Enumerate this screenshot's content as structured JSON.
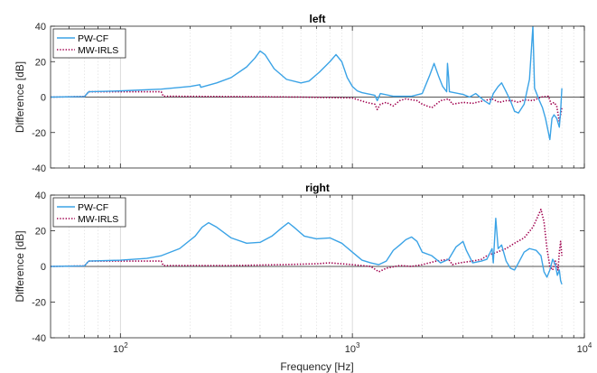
{
  "chart_data": {
    "type": "line",
    "xlabel": "Frequency [Hz]",
    "x_scale": "log",
    "xlim": [
      50,
      10000
    ],
    "x_tick_labels": [
      {
        "value": 100,
        "base": "10",
        "exp": "2"
      },
      {
        "value": 1000,
        "base": "10",
        "exp": "3"
      },
      {
        "value": 10000,
        "base": "10",
        "exp": "4"
      }
    ],
    "grid": "x-major-and-minor-dotted",
    "legend_position": "top-left",
    "panels": [
      {
        "title": "left",
        "ylabel": "Difference [dB]",
        "ylim": [
          -40,
          40
        ],
        "yticks": [
          -40,
          -20,
          0,
          20,
          40
        ],
        "series": [
          {
            "name": "PW-CF",
            "color": "#3ba3e6",
            "style": "solid",
            "points": [
              [
                50,
                0
              ],
              [
                70,
                0.3
              ],
              [
                73,
                3
              ],
              [
                100,
                3.5
              ],
              [
                150,
                4.5
              ],
              [
                200,
                6
              ],
              [
                220,
                7
              ],
              [
                222,
                5.5
              ],
              [
                260,
                8
              ],
              [
                300,
                11
              ],
              [
                350,
                17
              ],
              [
                380,
                22
              ],
              [
                400,
                26
              ],
              [
                420,
                24
              ],
              [
                460,
                16
              ],
              [
                520,
                10
              ],
              [
                600,
                8
              ],
              [
                650,
                9
              ],
              [
                720,
                14
              ],
              [
                800,
                20
              ],
              [
                850,
                24
              ],
              [
                900,
                20
              ],
              [
                950,
                11
              ],
              [
                1000,
                6
              ],
              [
                1050,
                3.5
              ],
              [
                1100,
                2.5
              ],
              [
                1200,
                1.5
              ],
              [
                1250,
                1
              ],
              [
                1280,
                -2
              ],
              [
                1320,
                2
              ],
              [
                1500,
                0.5
              ],
              [
                1800,
                0.5
              ],
              [
                2000,
                2
              ],
              [
                2150,
                12
              ],
              [
                2250,
                19
              ],
              [
                2350,
                12
              ],
              [
                2450,
                6
              ],
              [
                2550,
                3
              ],
              [
                2570,
                19
              ],
              [
                2600,
                11
              ],
              [
                2620,
                3
              ],
              [
                3000,
                1.5
              ],
              [
                3200,
                0
              ],
              [
                3400,
                2
              ],
              [
                3700,
                -2
              ],
              [
                3900,
                -4
              ],
              [
                4050,
                2
              ],
              [
                4250,
                6
              ],
              [
                4400,
                8
              ],
              [
                4600,
                3
              ],
              [
                4800,
                -2
              ],
              [
                5000,
                -8
              ],
              [
                5200,
                -9
              ],
              [
                5500,
                -4
              ],
              [
                5800,
                10
              ],
              [
                6000,
                40
              ],
              [
                6100,
                5
              ],
              [
                6400,
                -2
              ],
              [
                6600,
                -6
              ],
              [
                6800,
                -12
              ],
              [
                7000,
                -20
              ],
              [
                7100,
                -24
              ],
              [
                7250,
                -12
              ],
              [
                7400,
                -10
              ],
              [
                7600,
                -12
              ],
              [
                7800,
                -17
              ],
              [
                7900,
                -8
              ],
              [
                8000,
                5
              ]
            ]
          },
          {
            "name": "MW-IRLS",
            "color": "#a0004e",
            "style": "dotted",
            "points": [
              [
                50,
                0
              ],
              [
                70,
                0.3
              ],
              [
                73,
                3
              ],
              [
                150,
                3
              ],
              [
                153,
                0.5
              ],
              [
                300,
                0.3
              ],
              [
                600,
                0
              ],
              [
                1000,
                -0.5
              ],
              [
                1150,
                -3
              ],
              [
                1250,
                -4
              ],
              [
                1280,
                -7
              ],
              [
                1320,
                -4
              ],
              [
                1400,
                -3
              ],
              [
                1500,
                -5
              ],
              [
                1600,
                -2
              ],
              [
                1700,
                -1
              ],
              [
                1900,
                -2
              ],
              [
                2000,
                -4
              ],
              [
                2200,
                -6
              ],
              [
                2400,
                -2
              ],
              [
                2600,
                -1
              ],
              [
                2700,
                -4
              ],
              [
                3000,
                -3
              ],
              [
                3300,
                -3.5
              ],
              [
                3700,
                -2
              ],
              [
                4000,
                -1
              ],
              [
                4300,
                -3
              ],
              [
                4600,
                -2
              ],
              [
                4900,
                -2
              ],
              [
                5200,
                -3
              ],
              [
                5500,
                -1.5
              ],
              [
                6000,
                -2
              ],
              [
                6500,
                0
              ],
              [
                7000,
                0.5
              ],
              [
                7200,
                -4
              ],
              [
                7400,
                -3
              ],
              [
                7600,
                -5
              ],
              [
                7800,
                -14
              ],
              [
                7900,
                -10
              ],
              [
                8000,
                -6
              ]
            ]
          }
        ]
      },
      {
        "title": "right",
        "ylabel": "Difference [dB]",
        "ylim": [
          -40,
          40
        ],
        "yticks": [
          -40,
          -20,
          0,
          20,
          40
        ],
        "series": [
          {
            "name": "PW-CF",
            "color": "#3ba3e6",
            "style": "solid",
            "points": [
              [
                50,
                0
              ],
              [
                70,
                0.3
              ],
              [
                73,
                3
              ],
              [
                100,
                3.5
              ],
              [
                130,
                4.5
              ],
              [
                150,
                6
              ],
              [
                180,
                10
              ],
              [
                210,
                17
              ],
              [
                225,
                22
              ],
              [
                240,
                24.5
              ],
              [
                260,
                22
              ],
              [
                300,
                16
              ],
              [
                350,
                13
              ],
              [
                400,
                13.5
              ],
              [
                450,
                17
              ],
              [
                500,
                22
              ],
              [
                530,
                24.5
              ],
              [
                560,
                22
              ],
              [
                620,
                17
              ],
              [
                700,
                15.5
              ],
              [
                800,
                16
              ],
              [
                900,
                13
              ],
              [
                1000,
                8
              ],
              [
                1100,
                3.5
              ],
              [
                1200,
                2
              ],
              [
                1300,
                1
              ],
              [
                1400,
                3
              ],
              [
                1500,
                9
              ],
              [
                1600,
                12
              ],
              [
                1700,
                15
              ],
              [
                1800,
                16.5
              ],
              [
                1900,
                14
              ],
              [
                2000,
                8
              ],
              [
                2200,
                6
              ],
              [
                2400,
                2
              ],
              [
                2600,
                4
              ],
              [
                2800,
                11
              ],
              [
                3000,
                14
              ],
              [
                3100,
                9
              ],
              [
                3300,
                2
              ],
              [
                3600,
                3
              ],
              [
                3800,
                4
              ],
              [
                4000,
                10
              ],
              [
                4050,
                2
              ],
              [
                4150,
                27
              ],
              [
                4250,
                10
              ],
              [
                4400,
                12
              ],
              [
                4600,
                3
              ],
              [
                4800,
                -1
              ],
              [
                5000,
                -2
              ],
              [
                5200,
                2
              ],
              [
                5500,
                8
              ],
              [
                5800,
                10
              ],
              [
                6200,
                9
              ],
              [
                6500,
                6
              ],
              [
                6700,
                -3
              ],
              [
                6900,
                -6
              ],
              [
                7100,
                -2
              ],
              [
                7300,
                4
              ],
              [
                7500,
                1
              ],
              [
                7650,
                -5
              ],
              [
                7800,
                -2
              ],
              [
                7900,
                -8
              ],
              [
                8000,
                -10
              ]
            ]
          },
          {
            "name": "MW-IRLS",
            "color": "#a0004e",
            "style": "dotted",
            "points": [
              [
                50,
                0
              ],
              [
                70,
                0.3
              ],
              [
                73,
                3
              ],
              [
                150,
                3
              ],
              [
                153,
                0.5
              ],
              [
                300,
                0.5
              ],
              [
                500,
                1
              ],
              [
                700,
                1.5
              ],
              [
                800,
                2
              ],
              [
                1000,
                1
              ],
              [
                1200,
                0
              ],
              [
                1300,
                -3
              ],
              [
                1400,
                -1
              ],
              [
                1600,
                0.5
              ],
              [
                1800,
                0
              ],
              [
                2000,
                1
              ],
              [
                2300,
                3
              ],
              [
                2600,
                4
              ],
              [
                2700,
                1
              ],
              [
                2900,
                2
              ],
              [
                3300,
                3
              ],
              [
                3600,
                4
              ],
              [
                3800,
                6
              ],
              [
                4200,
                8
              ],
              [
                4600,
                10
              ],
              [
                5000,
                13
              ],
              [
                5500,
                16
              ],
              [
                6000,
                22
              ],
              [
                6300,
                28
              ],
              [
                6500,
                32
              ],
              [
                6700,
                25
              ],
              [
                6900,
                10
              ],
              [
                7100,
                0
              ],
              [
                7300,
                -2
              ],
              [
                7500,
                3
              ],
              [
                7700,
                -2
              ],
              [
                7800,
                8
              ],
              [
                7900,
                14
              ],
              [
                8000,
                6
              ]
            ]
          }
        ]
      }
    ]
  }
}
